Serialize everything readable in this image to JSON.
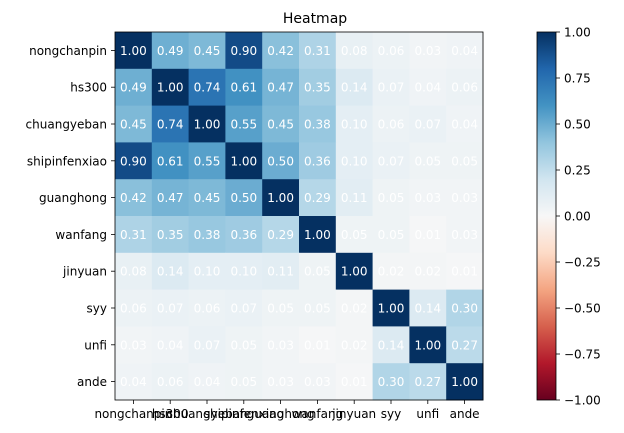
{
  "chart_data": {
    "type": "heatmap",
    "title": "Heatmap",
    "labels": [
      "nongchanpin",
      "hs300",
      "chuangyeban",
      "shipinfenxiao",
      "guanghong",
      "wanfang",
      "jinyuan",
      "syy",
      "unfi",
      "ande"
    ],
    "values": [
      [
        1.0,
        0.49,
        0.45,
        0.9,
        0.42,
        0.31,
        0.08,
        0.06,
        0.03,
        0.04
      ],
      [
        0.49,
        1.0,
        0.74,
        0.61,
        0.47,
        0.35,
        0.14,
        0.07,
        0.04,
        0.06
      ],
      [
        0.45,
        0.74,
        1.0,
        0.55,
        0.45,
        0.38,
        0.1,
        0.06,
        0.07,
        0.04
      ],
      [
        0.9,
        0.61,
        0.55,
        1.0,
        0.5,
        0.36,
        0.1,
        0.07,
        0.05,
        0.05
      ],
      [
        0.42,
        0.47,
        0.45,
        0.5,
        1.0,
        0.29,
        0.11,
        0.05,
        0.03,
        0.03
      ],
      [
        0.31,
        0.35,
        0.38,
        0.36,
        0.29,
        1.0,
        0.05,
        0.05,
        0.01,
        0.03
      ],
      [
        0.08,
        0.14,
        0.1,
        0.1,
        0.11,
        0.05,
        1.0,
        0.02,
        0.02,
        0.01
      ],
      [
        0.06,
        0.07,
        0.06,
        0.07,
        0.05,
        0.05,
        0.02,
        1.0,
        0.14,
        0.3
      ],
      [
        0.03,
        0.04,
        0.07,
        0.05,
        0.03,
        0.01,
        0.02,
        0.14,
        1.0,
        0.27
      ],
      [
        0.04,
        0.06,
        0.04,
        0.05,
        0.03,
        0.03,
        0.01,
        0.3,
        0.27,
        1.0
      ]
    ],
    "value_format": "0.00",
    "colormap": "RdBu",
    "vmin": -1.0,
    "vmax": 1.0,
    "colorbar_ticks": [
      1.0,
      0.75,
      0.5,
      0.25,
      0.0,
      -0.25,
      -0.5,
      -0.75,
      -1.0
    ],
    "colorbar_tick_labels": [
      "1.00",
      "0.75",
      "0.50",
      "0.25",
      "0.00",
      "−0.25",
      "−0.50",
      "−0.75",
      "−1.00"
    ],
    "grid": false
  }
}
